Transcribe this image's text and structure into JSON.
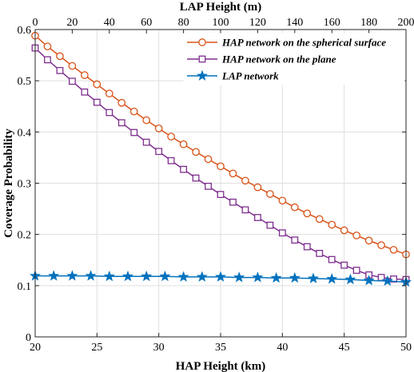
{
  "chart_data": {
    "type": "line",
    "xlabel": "HAP Height (km)",
    "x2label": "LAP Height (m)",
    "ylabel": "Coverage Probability",
    "xlim": [
      20,
      50
    ],
    "x2lim": [
      0,
      200
    ],
    "ylim": [
      0,
      0.6
    ],
    "xticks": [
      "20",
      "25",
      "30",
      "35",
      "40",
      "45",
      "50"
    ],
    "x2ticks": [
      "0",
      "20",
      "40",
      "60",
      "80",
      "100",
      "120",
      "140",
      "160",
      "180",
      "200"
    ],
    "yticks": [
      "0",
      "0.1",
      "0.2",
      "0.3",
      "0.4",
      "0.5",
      "0.6"
    ],
    "grid": true,
    "legend_position": "top-right",
    "x": [
      20,
      21,
      22,
      23,
      24,
      25,
      26,
      27,
      28,
      29,
      30,
      31,
      32,
      33,
      34,
      35,
      36,
      37,
      38,
      39,
      40,
      41,
      42,
      43,
      44,
      45,
      46,
      47,
      48,
      49,
      50
    ],
    "series": [
      {
        "name": "HAP network on the spherical surface",
        "color": "#D95319",
        "marker": "circle",
        "axis": "bottom",
        "values": [
          0.588,
          0.567,
          0.548,
          0.529,
          0.511,
          0.493,
          0.475,
          0.457,
          0.44,
          0.423,
          0.407,
          0.391,
          0.376,
          0.361,
          0.347,
          0.333,
          0.319,
          0.305,
          0.292,
          0.279,
          0.266,
          0.253,
          0.241,
          0.23,
          0.219,
          0.208,
          0.198,
          0.188,
          0.179,
          0.17,
          0.161
        ]
      },
      {
        "name": "HAP network on the plane",
        "color": "#7E2F8E",
        "marker": "square",
        "axis": "bottom",
        "values": [
          0.564,
          0.541,
          0.52,
          0.499,
          0.478,
          0.458,
          0.438,
          0.418,
          0.399,
          0.38,
          0.362,
          0.344,
          0.327,
          0.31,
          0.294,
          0.278,
          0.263,
          0.248,
          0.233,
          0.218,
          0.203,
          0.189,
          0.176,
          0.163,
          0.151,
          0.14,
          0.13,
          0.121,
          0.116,
          0.113,
          0.112
        ]
      },
      {
        "name": "LAP network",
        "color": "#0072BD",
        "marker": "star",
        "axis": "top",
        "x": [
          0,
          10,
          20,
          30,
          40,
          50,
          60,
          70,
          80,
          90,
          100,
          110,
          120,
          130,
          140,
          150,
          160,
          170,
          180,
          190,
          200
        ],
        "values": [
          0.119,
          0.119,
          0.119,
          0.119,
          0.118,
          0.118,
          0.118,
          0.118,
          0.117,
          0.117,
          0.117,
          0.116,
          0.116,
          0.115,
          0.115,
          0.114,
          0.113,
          0.112,
          0.11,
          0.109,
          0.107
        ]
      }
    ]
  }
}
